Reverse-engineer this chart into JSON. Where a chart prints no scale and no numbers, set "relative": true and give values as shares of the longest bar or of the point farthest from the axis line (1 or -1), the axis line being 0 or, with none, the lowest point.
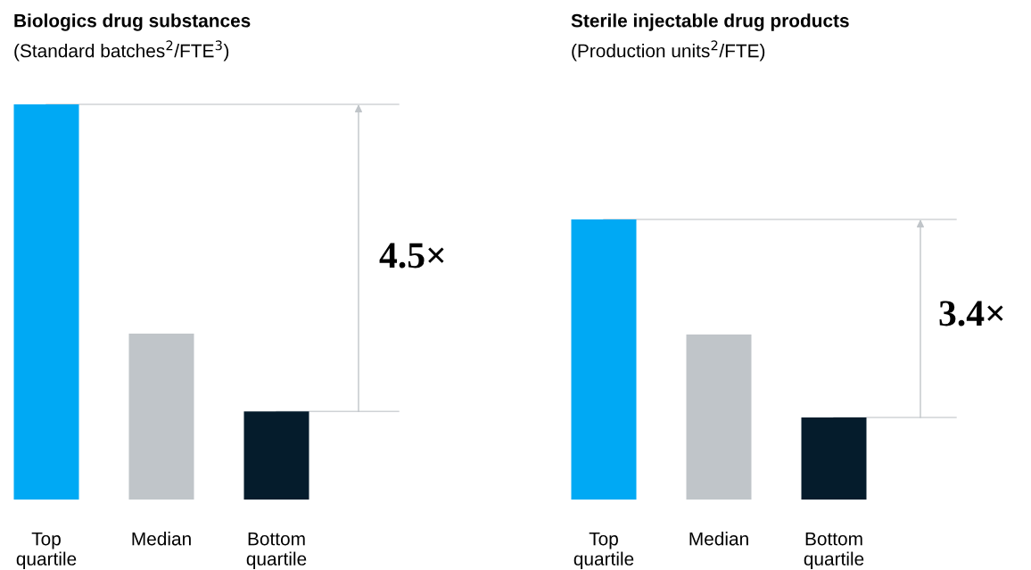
{
  "chart_data": [
    {
      "type": "bar",
      "title": "Biologics drug substances",
      "subtitle": "(Standard batches$^{2}$/FTE$^{3}$)",
      "relative": true,
      "categories": [
        "Top\nquartile",
        "Median",
        "Bottom\nquartile"
      ],
      "values": [
        1,
        0.42,
        0.223
      ],
      "colors": [
        "#00a9f4",
        "#c0c5c9",
        "#051c2c"
      ],
      "annotations": [
        "4.5×"
      ],
      "ref_lines": [
        {
          "axis": "y",
          "value": 1,
          "color": "#d0d3d6"
        },
        {
          "axis": "y",
          "value": 0.223,
          "color": "#d0d3d6"
        }
      ]
    },
    {
      "type": "bar",
      "title": "Sterile injectable drug products",
      "subtitle": "(Production units$^{2}$/FTE)",
      "relative": true,
      "categories": [
        "Top\nquartile",
        "Median",
        "Bottom\nquartile"
      ],
      "values": [
        1,
        0.589,
        0.293
      ],
      "colors": [
        "#00a9f4",
        "#c0c5c9",
        "#051c2c"
      ],
      "annotations": [
        "3.4×"
      ],
      "ref_lines": [
        {
          "axis": "y",
          "value": 1,
          "color": "#d0d3d6"
        },
        {
          "axis": "y",
          "value": 0.293,
          "color": "#d0d3d6"
        }
      ]
    }
  ]
}
